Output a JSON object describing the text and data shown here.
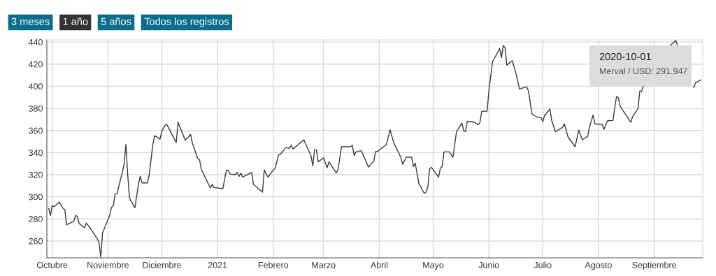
{
  "chart_data": {
    "type": "line",
    "x": [
      "2020-09-29",
      "2020-09-30",
      "2020-10-01",
      "2020-10-02",
      "2020-10-05",
      "2020-10-07",
      "2020-10-08",
      "2020-10-09",
      "2020-10-13",
      "2020-10-14",
      "2020-10-15",
      "2020-10-16",
      "2020-10-19",
      "2020-10-20",
      "2020-10-22",
      "2020-10-26",
      "2020-10-27",
      "2020-10-28",
      "2020-10-29",
      "2020-11-02",
      "2020-11-03",
      "2020-11-04",
      "2020-11-05",
      "2020-11-06",
      "2020-11-09",
      "2020-11-10",
      "2020-11-11",
      "2020-11-12",
      "2020-11-13",
      "2020-11-16",
      "2020-11-18",
      "2020-11-19",
      "2020-11-20",
      "2020-11-23",
      "2020-11-24",
      "2020-11-26",
      "2020-11-27",
      "2020-11-30",
      "2020-12-01",
      "2020-12-03",
      "2020-12-04",
      "2020-12-09",
      "2020-12-10",
      "2020-12-14",
      "2020-12-17",
      "2020-12-18",
      "2020-12-21",
      "2020-12-22",
      "2020-12-23",
      "2020-12-28",
      "2020-12-29",
      "2020-12-30",
      "2021-01-04",
      "2021-01-05",
      "2021-01-06",
      "2021-01-07",
      "2021-01-08",
      "2021-01-11",
      "2021-01-12",
      "2021-01-13",
      "2021-01-14",
      "2021-01-15",
      "2021-01-20",
      "2021-01-21",
      "2021-01-22",
      "2021-01-26",
      "2021-01-27",
      "2021-01-29",
      "2021-02-01",
      "2021-02-02",
      "2021-02-04",
      "2021-02-05",
      "2021-02-08",
      "2021-02-10",
      "2021-02-11",
      "2021-02-12",
      "2021-02-18",
      "2021-02-22",
      "2021-02-23",
      "2021-02-24",
      "2021-02-25",
      "2021-02-26",
      "2021-03-01",
      "2021-03-03",
      "2021-03-04",
      "2021-03-08",
      "2021-03-09",
      "2021-03-11",
      "2021-03-16",
      "2021-03-17",
      "2021-03-18",
      "2021-03-19",
      "2021-03-22",
      "2021-03-26",
      "2021-03-29",
      "2021-03-30",
      "2021-03-31",
      "2021-04-05",
      "2021-04-07",
      "2021-04-09",
      "2021-04-13",
      "2021-04-14",
      "2021-04-16",
      "2021-04-19",
      "2021-04-20",
      "2021-04-21",
      "2021-04-23",
      "2021-04-26",
      "2021-04-27",
      "2021-04-28",
      "2021-04-29",
      "2021-04-30",
      "2021-05-04",
      "2021-05-05",
      "2021-05-06",
      "2021-05-07",
      "2021-05-10",
      "2021-05-12",
      "2021-05-14",
      "2021-05-17",
      "2021-05-18",
      "2021-05-19",
      "2021-05-20",
      "2021-05-24",
      "2021-05-26",
      "2021-05-27",
      "2021-05-28",
      "2021-05-31",
      "2021-06-01",
      "2021-06-03",
      "2021-06-07",
      "2021-06-08",
      "2021-06-09",
      "2021-06-10",
      "2021-06-11",
      "2021-06-14",
      "2021-06-16",
      "2021-06-18",
      "2021-06-22",
      "2021-06-23",
      "2021-06-25",
      "2021-06-28",
      "2021-06-30",
      "2021-07-01",
      "2021-07-02",
      "2021-07-05",
      "2021-07-06",
      "2021-07-08",
      "2021-07-12",
      "2021-07-13",
      "2021-07-15",
      "2021-07-19",
      "2021-07-21",
      "2021-07-23",
      "2021-07-26",
      "2021-07-27",
      "2021-07-29",
      "2021-07-30",
      "2021-08-03",
      "2021-08-04",
      "2021-08-06",
      "2021-08-09",
      "2021-08-11",
      "2021-08-12",
      "2021-08-13",
      "2021-08-19",
      "2021-08-20",
      "2021-08-23",
      "2021-08-24",
      "2021-08-25",
      "2021-08-26",
      "2021-08-27",
      "2021-09-10",
      "2021-09-13",
      "2021-09-14",
      "2021-09-15",
      "2021-09-23",
      "2021-09-24",
      "2021-09-27"
    ],
    "series": [
      {
        "color": "#3a3a3a",
        "values": [
          289.5,
          283.2,
          291.947,
          291,
          295.2,
          289.5,
          288.4,
          274.7,
          277.9,
          283.2,
          282.1,
          275.8,
          272,
          276.2,
          272,
          262.1,
          258.9,
          245.5,
          267.4,
          283.2,
          290.5,
          292,
          302.7,
          302.7,
          322.1,
          329.5,
          347.4,
          320,
          298.9,
          290.1,
          311.6,
          318.5,
          312.6,
          312.6,
          320.4,
          347.4,
          355.4,
          352.2,
          359.6,
          365.3,
          364.8,
          349,
          367.4,
          351.1,
          356.4,
          348.4,
          334.7,
          333.3,
          324.6,
          308,
          311.2,
          308.4,
          307.4,
          316.8,
          324.2,
          323.8,
          320.6,
          320,
          322.1,
          318.5,
          321.4,
          317.9,
          322.1,
          311.2,
          309.9,
          304.2,
          324.2,
          317.8,
          324.2,
          325.9,
          337.9,
          338.5,
          344.6,
          343.8,
          346.7,
          343.2,
          351.6,
          337.2,
          328,
          342.5,
          342.5,
          331.6,
          335.3,
          326.3,
          331.6,
          321.7,
          324.2,
          345.3,
          345.3,
          346.7,
          337.5,
          340.6,
          341.7,
          326.9,
          332.6,
          341,
          341,
          347.4,
          360.6,
          349,
          335.8,
          329.5,
          335.8,
          335.8,
          327.4,
          330.5,
          312.2,
          303.1,
          304.2,
          308.4,
          325.2,
          326.7,
          317.8,
          325.9,
          327.4,
          340.6,
          340.6,
          335.8,
          359,
          366.7,
          359.3,
          359,
          368.4,
          367.4,
          365.3,
          366.9,
          377.3,
          377.5,
          395.8,
          422.1,
          434.1,
          425.9,
          436.8,
          434.8,
          419,
          423.2,
          412.2,
          397.5,
          399.6,
          395.8,
          374.8,
          372,
          371.6,
          368,
          373.7,
          379.4,
          368.8,
          359,
          362.8,
          366,
          354.3,
          345.3,
          360.4,
          351.6,
          354.7,
          363.1,
          374.1,
          366,
          365.5,
          361,
          368.8,
          369.1,
          390.5,
          389.9,
          382.1,
          367.4,
          372.6,
          380,
          395.8,
          395.4,
          401,
          null,
          437,
          441.5,
          437,
          null,
          399,
          403.2,
          405.7
        ]
      }
    ],
    "xlim": [
      "2020-09-28",
      "2021-09-28"
    ],
    "xticks": [
      {
        "value": "2020-10-01",
        "label": "Octubre"
      },
      {
        "value": "2020-11-01",
        "label": "Noviembre"
      },
      {
        "value": "2020-12-01",
        "label": "Diciembre"
      },
      {
        "value": "2021-01-01",
        "label": "2021"
      },
      {
        "value": "2021-02-01",
        "label": "Febrero"
      },
      {
        "value": "2021-03-01",
        "label": "Marzo"
      },
      {
        "value": "2021-04-01",
        "label": "Abril"
      },
      {
        "value": "2021-05-01",
        "label": "Mayo"
      },
      {
        "value": "2021-06-01",
        "label": "Junio"
      },
      {
        "value": "2021-07-01",
        "label": "Julio"
      },
      {
        "value": "2021-08-01",
        "label": "Agosto"
      },
      {
        "value": "2021-09-01",
        "label": "Septiembre"
      }
    ],
    "ylim": [
      244.8,
      442
    ],
    "yticks": [
      260,
      280,
      300,
      320,
      340,
      360,
      380,
      400,
      420,
      440
    ],
    "grid": true,
    "marker": "none",
    "line_style": "solid",
    "annotations": [
      "3 meses",
      "1 año",
      "5 años",
      "Todos los registros",
      "2020-10-01",
      "Merval / USD: 291.947"
    ]
  }
}
